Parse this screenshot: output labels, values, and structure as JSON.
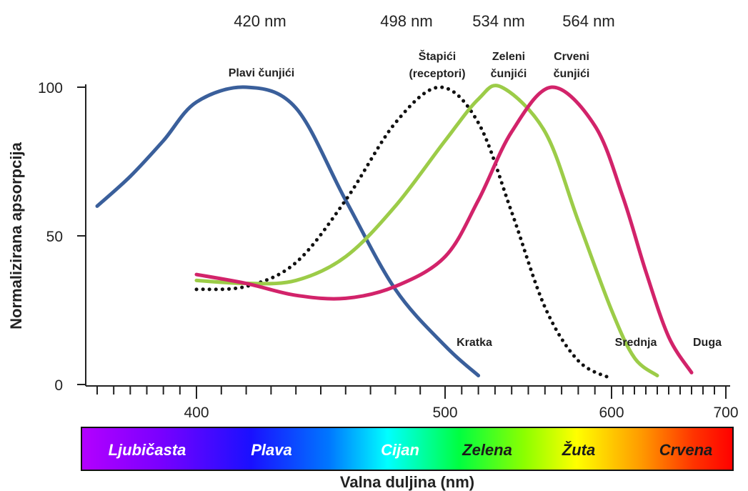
{
  "chart_data": {
    "type": "line",
    "xlabel": "Valna duljina (nm)",
    "ylabel": "Normalizirana apsorpcija",
    "ylim": [
      0,
      100
    ],
    "yticks": [
      0,
      50,
      100
    ],
    "xticks": [
      400,
      500,
      600,
      700
    ],
    "grid": false,
    "peak_labels": [
      "420 nm",
      "498 nm",
      "534 nm",
      "564 nm"
    ],
    "series": [
      {
        "name": "Plavi čunjići",
        "end_label": "Kratka",
        "color": "#3a5f9b",
        "style": "solid",
        "x": [
          340,
          360,
          380,
          400,
          420,
          440,
          460,
          480,
          500,
          520
        ],
        "y": [
          60,
          70,
          82,
          95,
          100,
          93,
          62,
          32,
          13,
          3
        ]
      },
      {
        "name": "Štapići (receptori)",
        "color": "#111111",
        "style": "dotted",
        "x": [
          400,
          420,
          440,
          460,
          480,
          498,
          520,
          540,
          560,
          580,
          600
        ],
        "y": [
          32,
          33,
          41,
          62,
          88,
          100,
          88,
          58,
          26,
          8,
          2
        ]
      },
      {
        "name": "Zeleni čunjići",
        "end_label": "Srednja",
        "color": "#9ccc48",
        "style": "solid",
        "x": [
          400,
          420,
          440,
          460,
          480,
          500,
          520,
          534,
          560,
          580,
          600,
          620,
          640
        ],
        "y": [
          35,
          34,
          35,
          43,
          60,
          82,
          96,
          100,
          85,
          55,
          25,
          9,
          3
        ]
      },
      {
        "name": "Crveni čunjići",
        "end_label": "Duga",
        "color": "#d2236a",
        "style": "solid",
        "x": [
          400,
          420,
          440,
          460,
          480,
          500,
          520,
          540,
          564,
          590,
          610,
          630,
          650,
          670
        ],
        "y": [
          37,
          34,
          30,
          29,
          33,
          43,
          62,
          85,
          100,
          87,
          63,
          38,
          16,
          4
        ]
      }
    ]
  },
  "spectrum": {
    "labels": [
      "Ljubičasta",
      "Plava",
      "Cijan",
      "Zelena",
      "Žuta",
      "Crvena"
    ]
  }
}
